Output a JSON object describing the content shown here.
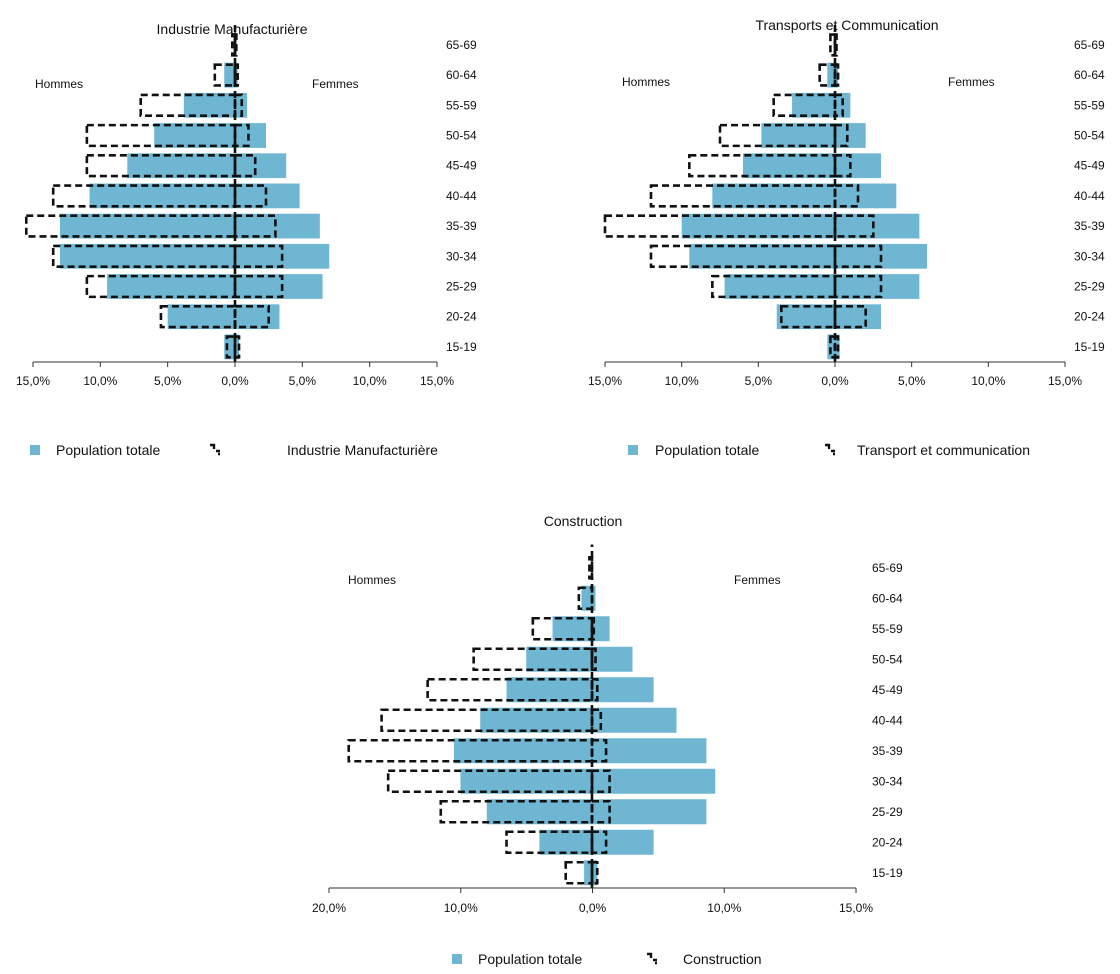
{
  "colors": {
    "pop_fill": "#6fb6d3",
    "dash": "#111111",
    "axis": "#333333"
  },
  "chart_data": [
    {
      "type": "pyramid",
      "title": "Industrie Manufacturière",
      "left_label": "Hommes",
      "right_label": "Femmes",
      "age_groups": [
        "15-19",
        "20-24",
        "25-29",
        "30-34",
        "35-39",
        "40-44",
        "45-49",
        "50-54",
        "55-59",
        "60-64",
        "65-69"
      ],
      "x_ticks": [
        "15,0%",
        "10,0%",
        "5,0%",
        "0,0%",
        "5,0%",
        "10,0%",
        "15,0%"
      ],
      "xlim_left": 15,
      "xlim_right": 15,
      "legend": {
        "population_label": "Population totale",
        "sector_label": "Industrie Manufacturière"
      },
      "population": {
        "men": [
          0.8,
          5.0,
          9.5,
          13.0,
          13.0,
          10.8,
          8.0,
          6.0,
          3.8,
          0.8,
          0.0
        ],
        "women": [
          0.3,
          3.3,
          6.5,
          7.0,
          6.3,
          4.8,
          3.8,
          2.3,
          0.9,
          0.2,
          0.0
        ]
      },
      "sector": {
        "men": [
          0.6,
          5.5,
          11.0,
          13.5,
          15.5,
          13.5,
          11.0,
          11.0,
          7.0,
          1.5,
          0.2
        ],
        "women": [
          0.3,
          2.5,
          3.5,
          3.5,
          3.0,
          2.3,
          1.5,
          1.0,
          0.5,
          0.2,
          0.1
        ]
      }
    },
    {
      "type": "pyramid",
      "title": "Transports et Communication",
      "left_label": "Hommes",
      "right_label": "Femmes",
      "age_groups": [
        "15-19",
        "20-24",
        "25-29",
        "30-34",
        "35-39",
        "40-44",
        "45-49",
        "50-54",
        "55-59",
        "60-64",
        "65-69"
      ],
      "x_ticks": [
        "15,0%",
        "10,0%",
        "5,0%",
        "0,0%",
        "5,0%",
        "10,0%",
        "15,0%"
      ],
      "xlim_left": 15,
      "xlim_right": 15,
      "legend": {
        "population_label": "Population totale",
        "sector_label": "Transport et communication"
      },
      "population": {
        "men": [
          0.5,
          3.8,
          7.2,
          9.5,
          10.0,
          8.0,
          6.0,
          4.8,
          2.8,
          0.5,
          0.0
        ],
        "women": [
          0.3,
          3.0,
          5.5,
          6.0,
          5.5,
          4.0,
          3.0,
          2.0,
          1.0,
          0.2,
          0.0
        ]
      },
      "sector": {
        "men": [
          0.3,
          3.5,
          8.0,
          12.0,
          15.0,
          12.0,
          9.5,
          7.5,
          4.0,
          1.0,
          0.3
        ],
        "women": [
          0.2,
          2.0,
          3.0,
          3.0,
          2.5,
          1.5,
          1.0,
          0.8,
          0.5,
          0.2,
          0.1
        ]
      }
    },
    {
      "type": "pyramid",
      "title": "Construction",
      "left_label": "Hommes",
      "right_label": "Femmes",
      "age_groups": [
        "15-19",
        "20-24",
        "25-29",
        "30-34",
        "35-39",
        "40-44",
        "45-49",
        "50-54",
        "55-59",
        "60-64",
        "65-69"
      ],
      "x_ticks": [
        "20,0%",
        "10,0%",
        "0,0%",
        "10,0%",
        "15,0%"
      ],
      "xlim_left": 20,
      "xlim_right": 15,
      "legend": {
        "population_label": "Population totale",
        "sector_label": "Construction"
      },
      "population": {
        "men": [
          0.6,
          4.0,
          8.0,
          10.0,
          10.5,
          8.5,
          6.5,
          5.0,
          3.0,
          0.8,
          0.0
        ],
        "women": [
          0.3,
          3.5,
          6.5,
          7.0,
          6.5,
          4.8,
          3.5,
          2.3,
          1.0,
          0.2,
          0.0
        ]
      },
      "sector": {
        "men": [
          2.0,
          6.5,
          11.5,
          15.5,
          18.5,
          16.0,
          12.5,
          9.0,
          4.5,
          1.0,
          0.2
        ],
        "women": [
          0.3,
          0.8,
          1.0,
          1.0,
          0.8,
          0.5,
          0.3,
          0.2,
          0.1,
          0.0,
          0.0
        ]
      }
    }
  ]
}
